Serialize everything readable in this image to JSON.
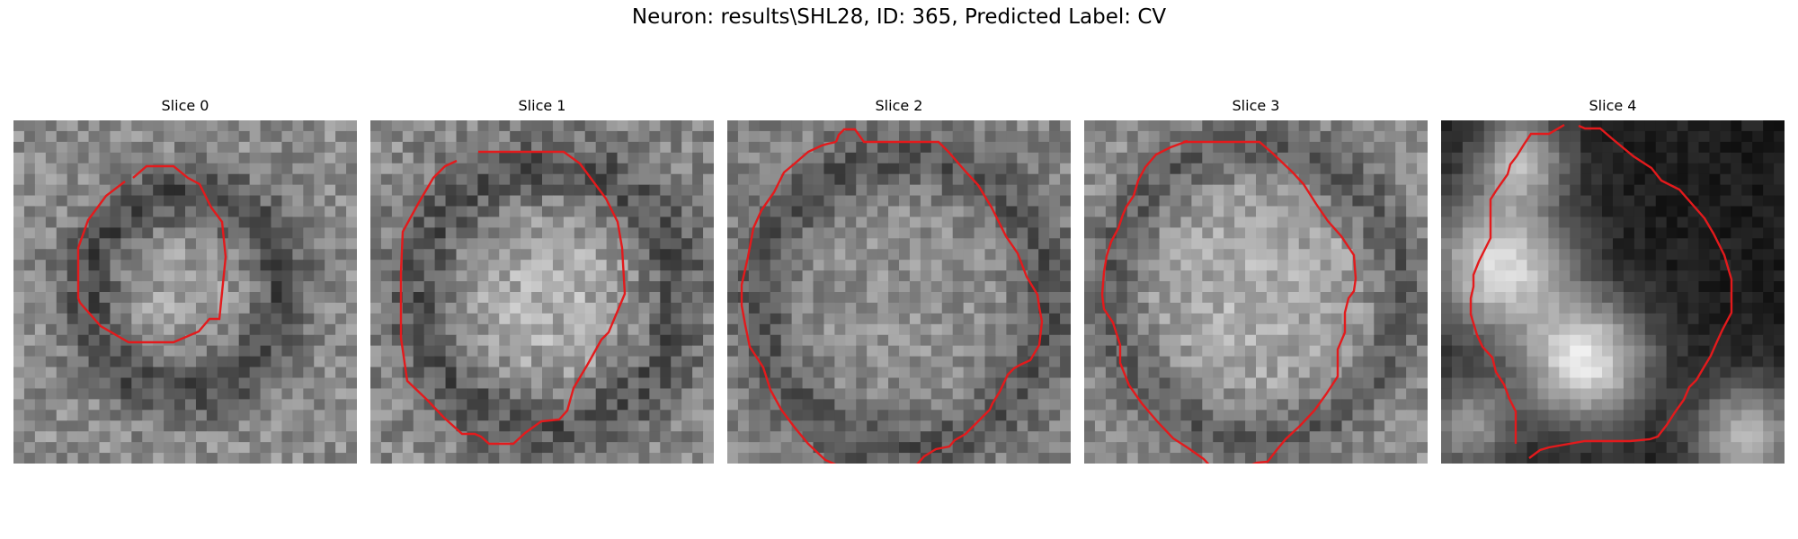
{
  "figure": {
    "title": "Neuron: results\\SHL28, ID: 365, Predicted Label: CV"
  },
  "panels": [
    {
      "title": "Slice 0"
    },
    {
      "title": "Slice 1"
    },
    {
      "title": "Slice 2"
    },
    {
      "title": "Slice 3"
    },
    {
      "title": "Slice 4"
    }
  ],
  "colors": {
    "contour": "#e31a1c",
    "background": "#ffffff"
  }
}
